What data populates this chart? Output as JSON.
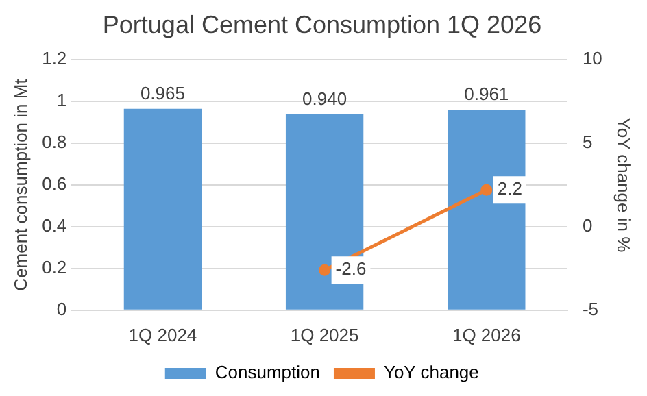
{
  "chart_data": {
    "type": "bar",
    "title": "Portugal Cement Consumption 1Q 2026",
    "ylabel": "Cement consumption in Mt",
    "y2label": "YoY change in %",
    "categories": [
      "1Q 2024",
      "1Q 2025",
      "1Q 2026"
    ],
    "series": [
      {
        "name": "Consumption",
        "color": "#5b9bd5",
        "values": [
          0.965,
          0.94,
          0.961
        ],
        "value_labels": [
          "0.965",
          "0.940",
          "0.961"
        ]
      },
      {
        "name": "YoY change",
        "type": "line",
        "axis": "y2",
        "color": "#ed7d31",
        "values": [
          null,
          -2.6,
          2.2
        ],
        "value_labels": [
          null,
          "-2.6",
          "2.2"
        ]
      }
    ],
    "ylim": [
      0,
      1.2
    ],
    "yticks": [
      0,
      0.2,
      0.4,
      0.6,
      0.8,
      1,
      1.2
    ],
    "y2lim": [
      -5,
      10
    ],
    "y2ticks": [
      -5,
      0,
      5,
      10
    ],
    "grid": "y",
    "legend": "bottom",
    "marker": "circle",
    "line_style": "solid"
  }
}
